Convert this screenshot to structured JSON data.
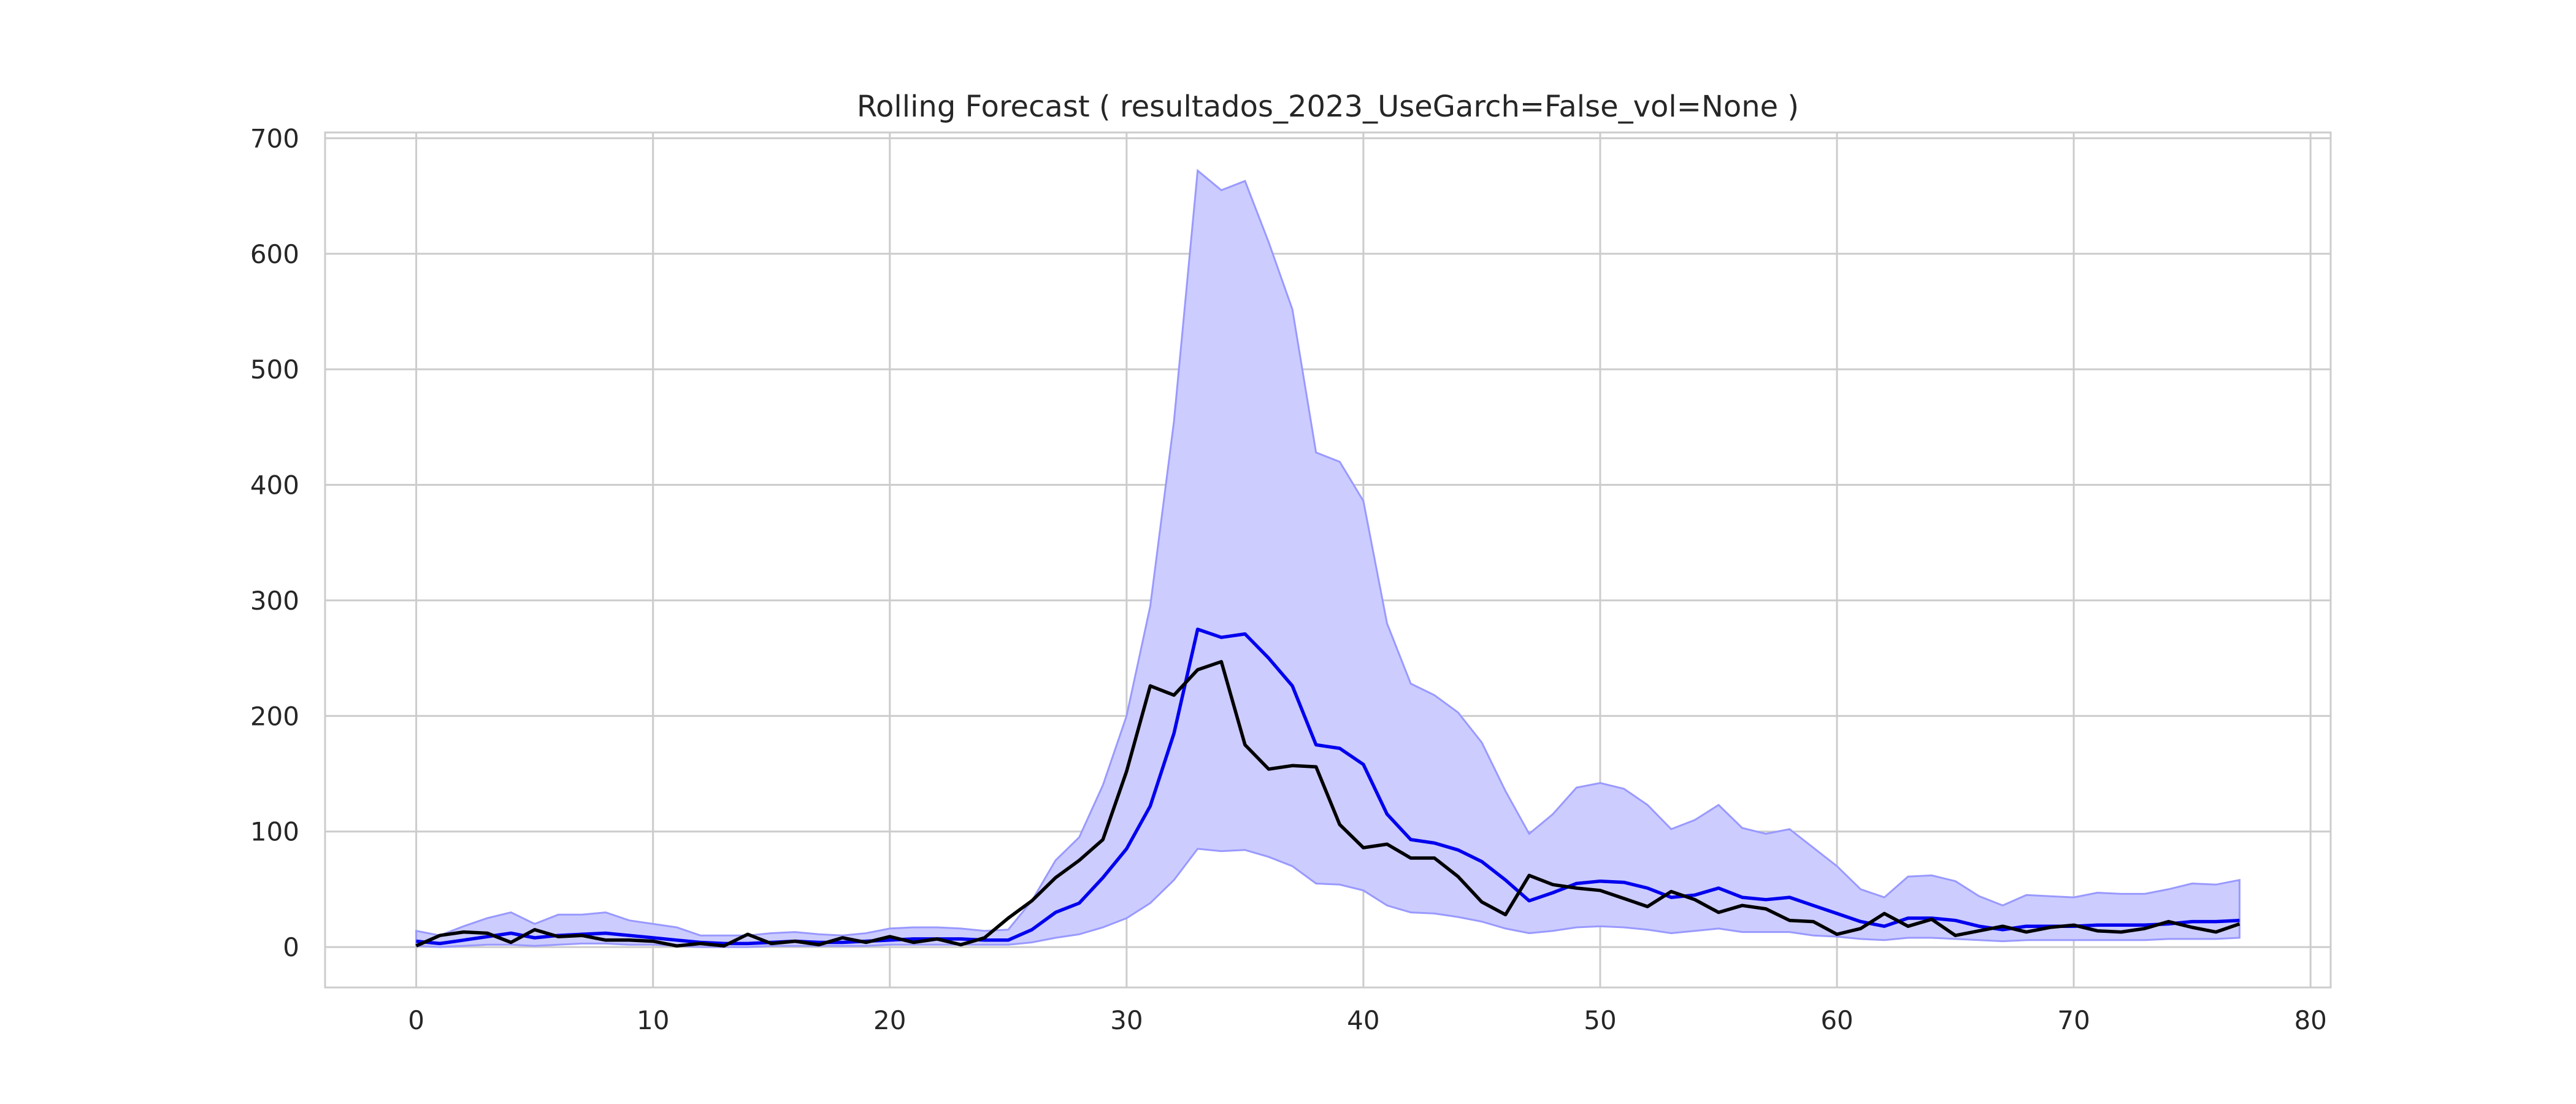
{
  "chart_data": {
    "type": "line",
    "title": "Rolling Forecast ( resultados_2023_UseGarch=False_vol=None )",
    "xlabel": "",
    "ylabel": "",
    "xlim": [
      -3.85,
      80.85
    ],
    "ylim": [
      -35,
      705
    ],
    "x_ticks": [
      0,
      10,
      20,
      30,
      40,
      50,
      60,
      70,
      80
    ],
    "y_ticks": [
      0,
      100,
      200,
      300,
      400,
      500,
      600,
      700
    ],
    "grid": true,
    "legend": "none",
    "colors": {
      "band_fill": "#ccccff",
      "band_edge": "#9999ff",
      "forecast": "#0000ee",
      "actual": "#000000",
      "grid": "#cccccc",
      "axes": "#cccccc"
    },
    "x": [
      0,
      1,
      2,
      3,
      4,
      5,
      6,
      7,
      8,
      9,
      10,
      11,
      12,
      13,
      14,
      15,
      16,
      17,
      18,
      19,
      20,
      21,
      22,
      23,
      24,
      25,
      26,
      27,
      28,
      29,
      30,
      31,
      32,
      33,
      34,
      35,
      36,
      37,
      38,
      39,
      40,
      41,
      42,
      43,
      44,
      45,
      46,
      47,
      48,
      49,
      50,
      51,
      52,
      53,
      54,
      55,
      56,
      57,
      58,
      59,
      60,
      61,
      62,
      63,
      64,
      65,
      66,
      67,
      68,
      69,
      70,
      71,
      72,
      73,
      74,
      75,
      76,
      77
    ],
    "series": [
      {
        "role": "interval",
        "upper": [
          14,
          10,
          18,
          25,
          30,
          20,
          28,
          28,
          30,
          23,
          20,
          17,
          10,
          10,
          10,
          12,
          13,
          11,
          10,
          12,
          16,
          17,
          17,
          16,
          14,
          15,
          40,
          75,
          95,
          140,
          200,
          295,
          455,
          672,
          655,
          663,
          610,
          552,
          428,
          420,
          386,
          280,
          228,
          218,
          203,
          177,
          135,
          98,
          115,
          138,
          142,
          137,
          123,
          102,
          110,
          123,
          103,
          98,
          102,
          86,
          70,
          50,
          43,
          61,
          62,
          57,
          44,
          36,
          45,
          44,
          43,
          47,
          46,
          46,
          50,
          55,
          54,
          58
        ],
        "lower": [
          1,
          0,
          1,
          2,
          2,
          1,
          2,
          3,
          3,
          2,
          2,
          1,
          0,
          0,
          0,
          1,
          1,
          1,
          1,
          1,
          2,
          2,
          2,
          2,
          2,
          2,
          4,
          8,
          11,
          17,
          25,
          38,
          58,
          85,
          83,
          84,
          78,
          70,
          55,
          54,
          49,
          36,
          30,
          29,
          26,
          22,
          16,
          12,
          14,
          17,
          18,
          17,
          15,
          12,
          14,
          16,
          13,
          13,
          13,
          10,
          9,
          7,
          6,
          8,
          8,
          7,
          6,
          5,
          6,
          6,
          6,
          6,
          6,
          6,
          7,
          7,
          7,
          8
        ]
      },
      {
        "role": "forecast",
        "values": [
          5,
          3,
          6,
          9,
          12,
          8,
          10,
          11,
          12,
          10,
          8,
          6,
          4,
          3,
          3,
          4,
          5,
          4,
          4,
          5,
          6,
          7,
          7,
          7,
          6,
          6,
          15,
          30,
          38,
          60,
          85,
          122,
          185,
          275,
          268,
          271,
          250,
          226,
          175,
          172,
          158,
          115,
          93,
          90,
          84,
          74,
          58,
          40,
          47,
          55,
          57,
          56,
          51,
          43,
          45,
          51,
          43,
          41,
          43,
          36,
          29,
          22,
          18,
          25,
          25,
          23,
          18,
          15,
          18,
          18,
          18,
          19,
          19,
          19,
          20,
          22,
          22,
          23
        ]
      },
      {
        "role": "actual",
        "values": [
          1,
          10,
          13,
          12,
          4,
          15,
          9,
          10,
          6,
          6,
          5,
          1,
          3,
          1,
          11,
          3,
          5,
          2,
          8,
          4,
          9,
          4,
          7,
          2,
          8,
          25,
          40,
          60,
          75,
          93,
          152,
          226,
          218,
          240,
          247,
          175,
          154,
          157,
          156,
          106,
          86,
          89,
          77,
          77,
          61,
          39,
          28,
          62,
          54,
          51,
          49,
          42,
          35,
          48,
          41,
          30,
          36,
          33,
          23,
          22,
          11,
          16,
          29,
          18,
          24,
          10,
          14,
          18,
          13,
          17,
          19,
          14,
          13,
          16,
          22,
          17,
          13,
          20
        ]
      }
    ]
  }
}
